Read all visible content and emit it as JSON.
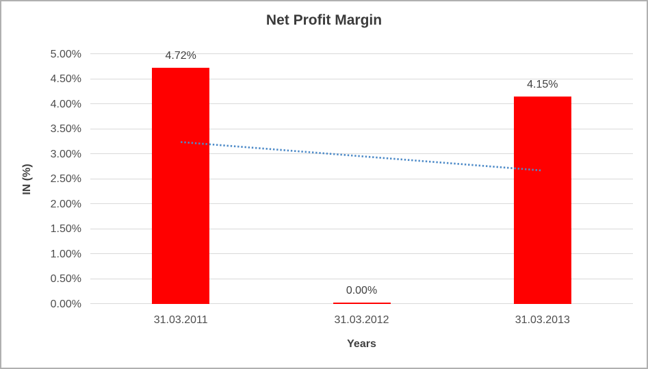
{
  "chart_data": {
    "type": "bar",
    "title": "Net Profit Margin",
    "xlabel": "Years",
    "ylabel": "IN (%)",
    "categories": [
      "31.03.2011",
      "31.03.2012",
      "31.03.2013"
    ],
    "series": [
      {
        "name": "Net Profit Margin",
        "values": [
          4.72,
          0.0,
          4.15
        ],
        "data_labels": [
          "4.72%",
          "0.00%",
          "4.15%"
        ],
        "color": "#ff0000"
      }
    ],
    "ylim": [
      0,
      5
    ],
    "ytick_step": 0.5,
    "ytick_labels": [
      "0.00%",
      "0.50%",
      "1.00%",
      "1.50%",
      "2.00%",
      "2.50%",
      "3.00%",
      "3.50%",
      "4.00%",
      "4.50%",
      "5.00%"
    ],
    "grid": true,
    "gridline_color": "#d9d9d9",
    "legend": "none",
    "trendline": {
      "type": "linear",
      "style": "dotted",
      "color": "#4e8bc8",
      "start_category_index": 0,
      "end_category_index": 2,
      "start_value": 3.24,
      "end_value": 2.67
    },
    "label_color": "#404040",
    "axis_text_color": "#4d4d4d"
  }
}
